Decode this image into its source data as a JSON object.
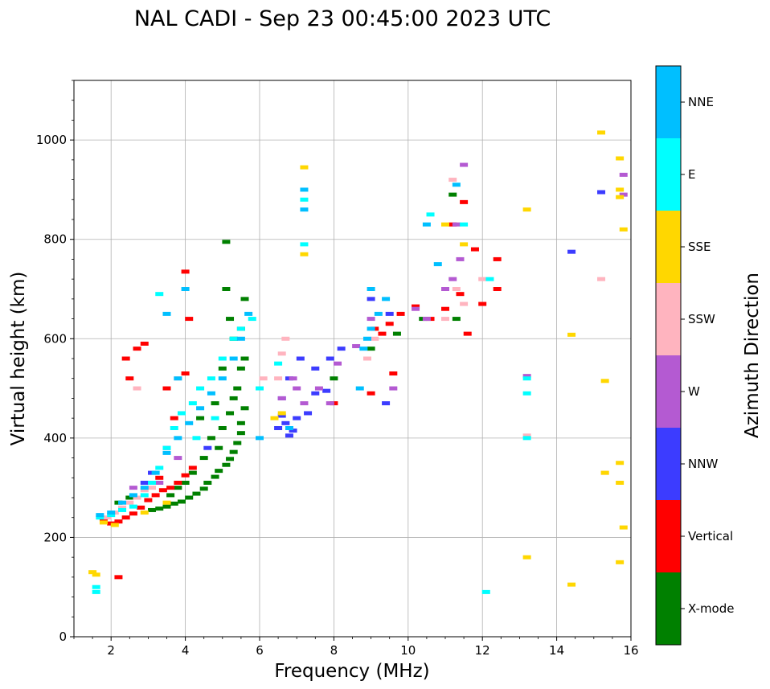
{
  "chart_data": {
    "type": "scatter",
    "title": "NAL CADI - Sep 23 00:45:00 2023 UTC",
    "xlabel": "Frequency (MHz)",
    "ylabel": "Virtual height (km)",
    "xlim": [
      1,
      16
    ],
    "ylim": [
      0,
      1120
    ],
    "xticks": [
      2,
      4,
      6,
      8,
      10,
      12,
      14,
      16
    ],
    "yticks": [
      0,
      200,
      400,
      600,
      800,
      1000
    ],
    "grid": true,
    "colorbar": {
      "label": "Azimuth Direction",
      "categories": [
        "X-mode",
        "Vertical",
        "NNW",
        "W",
        "SSW",
        "SSE",
        "E",
        "NNE"
      ],
      "colors": [
        "#008000",
        "#ff0000",
        "#3c3cff",
        "#b45ad2",
        "#ffb4bf",
        "#ffd700",
        "#00ffff",
        "#00bfff"
      ]
    },
    "series": [
      {
        "name": "X-mode",
        "points": [
          [
            3.1,
            255
          ],
          [
            3.3,
            258
          ],
          [
            3.5,
            262
          ],
          [
            3.7,
            268
          ],
          [
            3.9,
            272
          ],
          [
            4.1,
            280
          ],
          [
            4.3,
            288
          ],
          [
            4.5,
            298
          ],
          [
            4.6,
            310
          ],
          [
            4.8,
            322
          ],
          [
            4.9,
            334
          ],
          [
            5.1,
            346
          ],
          [
            5.2,
            358
          ],
          [
            5.3,
            372
          ],
          [
            5.4,
            390
          ],
          [
            5.5,
            410
          ],
          [
            5.5,
            430
          ],
          [
            5.6,
            460
          ],
          [
            4.9,
            380
          ],
          [
            5.0,
            420
          ],
          [
            5.2,
            450
          ],
          [
            5.3,
            480
          ],
          [
            5.4,
            500
          ],
          [
            5.5,
            540
          ],
          [
            5.6,
            560
          ],
          [
            5.3,
            600
          ],
          [
            5.2,
            640
          ],
          [
            5.6,
            680
          ],
          [
            5.1,
            700
          ],
          [
            5.1,
            795
          ],
          [
            4.5,
            360
          ],
          [
            4.2,
            330
          ],
          [
            4.0,
            310
          ],
          [
            3.8,
            300
          ],
          [
            3.6,
            285
          ],
          [
            4.7,
            400
          ],
          [
            5.0,
            540
          ],
          [
            4.4,
            440
          ],
          [
            8.0,
            520
          ],
          [
            9.0,
            580
          ],
          [
            9.7,
            610
          ],
          [
            10.4,
            640
          ],
          [
            11.3,
            640
          ],
          [
            11.2,
            890
          ],
          [
            2.2,
            270
          ],
          [
            2.5,
            280
          ],
          [
            5.5,
            620
          ],
          [
            4.8,
            470
          ]
        ]
      },
      {
        "name": "Vertical",
        "points": [
          [
            1.8,
            235
          ],
          [
            2.0,
            228
          ],
          [
            2.2,
            232
          ],
          [
            2.4,
            240
          ],
          [
            2.6,
            248
          ],
          [
            2.8,
            260
          ],
          [
            3.0,
            275
          ],
          [
            3.2,
            285
          ],
          [
            3.4,
            295
          ],
          [
            3.6,
            300
          ],
          [
            3.8,
            310
          ],
          [
            4.0,
            325
          ],
          [
            4.2,
            340
          ],
          [
            2.2,
            120
          ],
          [
            2.5,
            520
          ],
          [
            2.7,
            580
          ],
          [
            2.9,
            590
          ],
          [
            4.0,
            530
          ],
          [
            4.1,
            640
          ],
          [
            4.0,
            735
          ],
          [
            9.1,
            620
          ],
          [
            9.3,
            610
          ],
          [
            9.5,
            630
          ],
          [
            9.8,
            650
          ],
          [
            10.2,
            665
          ],
          [
            10.6,
            640
          ],
          [
            11.0,
            660
          ],
          [
            11.4,
            690
          ],
          [
            11.6,
            610
          ],
          [
            11.8,
            780
          ],
          [
            12.0,
            670
          ],
          [
            12.4,
            760
          ],
          [
            12.4,
            700
          ],
          [
            11.5,
            875
          ],
          [
            11.2,
            830
          ],
          [
            9.0,
            490
          ],
          [
            9.6,
            530
          ],
          [
            8.0,
            470
          ],
          [
            3.5,
            500
          ],
          [
            3.7,
            440
          ],
          [
            3.3,
            320
          ],
          [
            2.4,
            560
          ]
        ]
      },
      {
        "name": "NNW",
        "points": [
          [
            6.5,
            420
          ],
          [
            6.7,
            430
          ],
          [
            6.8,
            405
          ],
          [
            6.9,
            415
          ],
          [
            6.6,
            445
          ],
          [
            7.0,
            440
          ],
          [
            7.3,
            450
          ],
          [
            7.5,
            490
          ],
          [
            7.8,
            495
          ],
          [
            7.9,
            560
          ],
          [
            6.6,
            480
          ],
          [
            6.8,
            520
          ],
          [
            7.1,
            560
          ],
          [
            7.5,
            540
          ],
          [
            8.2,
            580
          ],
          [
            9.0,
            680
          ],
          [
            9.5,
            650
          ],
          [
            14.4,
            775
          ],
          [
            15.2,
            895
          ],
          [
            3.1,
            330
          ],
          [
            2.9,
            310
          ],
          [
            3.5,
            380
          ],
          [
            4.6,
            380
          ],
          [
            9.4,
            470
          ]
        ]
      },
      {
        "name": "W",
        "points": [
          [
            6.9,
            520
          ],
          [
            7.0,
            500
          ],
          [
            7.2,
            470
          ],
          [
            7.6,
            500
          ],
          [
            7.9,
            470
          ],
          [
            8.1,
            550
          ],
          [
            8.6,
            585
          ],
          [
            9.0,
            640
          ],
          [
            9.6,
            500
          ],
          [
            10.2,
            660
          ],
          [
            10.5,
            640
          ],
          [
            11.0,
            700
          ],
          [
            11.2,
            720
          ],
          [
            11.4,
            760
          ],
          [
            11.5,
            950
          ],
          [
            11.3,
            830
          ],
          [
            6.6,
            480
          ],
          [
            2.6,
            300
          ],
          [
            3.3,
            310
          ],
          [
            3.8,
            360
          ],
          [
            13.2,
            525
          ],
          [
            15.8,
            930
          ],
          [
            15.8,
            890
          ]
        ]
      },
      {
        "name": "SSW",
        "points": [
          [
            1.9,
            240
          ],
          [
            2.1,
            250
          ],
          [
            2.3,
            260
          ],
          [
            2.5,
            270
          ],
          [
            2.7,
            280
          ],
          [
            2.9,
            295
          ],
          [
            3.1,
            300
          ],
          [
            6.1,
            520
          ],
          [
            6.5,
            520
          ],
          [
            6.6,
            570
          ],
          [
            6.7,
            600
          ],
          [
            8.9,
            560
          ],
          [
            9.1,
            600
          ],
          [
            11.0,
            640
          ],
          [
            11.2,
            920
          ],
          [
            11.5,
            670
          ],
          [
            11.3,
            700
          ],
          [
            12.0,
            720
          ],
          [
            13.2,
            405
          ],
          [
            15.2,
            720
          ],
          [
            15.3,
            330
          ],
          [
            2.7,
            500
          ],
          [
            3.8,
            520
          ]
        ]
      },
      {
        "name": "SSE",
        "points": [
          [
            1.5,
            130
          ],
          [
            1.6,
            125
          ],
          [
            1.8,
            230
          ],
          [
            2.1,
            225
          ],
          [
            6.4,
            440
          ],
          [
            6.6,
            450
          ],
          [
            7.2,
            945
          ],
          [
            7.2,
            770
          ],
          [
            11.5,
            790
          ],
          [
            11.0,
            830
          ],
          [
            13.2,
            860
          ],
          [
            14.4,
            608
          ],
          [
            15.2,
            1015
          ],
          [
            15.7,
            963
          ],
          [
            15.7,
            900
          ],
          [
            15.7,
            885
          ],
          [
            15.8,
            820
          ],
          [
            15.3,
            515
          ],
          [
            15.7,
            350
          ],
          [
            15.7,
            310
          ],
          [
            15.8,
            220
          ],
          [
            15.7,
            150
          ],
          [
            13.2,
            160
          ],
          [
            14.4,
            105
          ],
          [
            15.3,
            330
          ],
          [
            3.5,
            270
          ],
          [
            2.9,
            250
          ]
        ]
      },
      {
        "name": "E",
        "points": [
          [
            1.6,
            90
          ],
          [
            1.6,
            100
          ],
          [
            1.7,
            240
          ],
          [
            2.0,
            245
          ],
          [
            2.3,
            255
          ],
          [
            2.6,
            262
          ],
          [
            2.9,
            285
          ],
          [
            3.1,
            310
          ],
          [
            3.3,
            340
          ],
          [
            3.5,
            380
          ],
          [
            3.7,
            420
          ],
          [
            3.9,
            450
          ],
          [
            4.2,
            470
          ],
          [
            4.4,
            500
          ],
          [
            4.7,
            520
          ],
          [
            5.0,
            560
          ],
          [
            5.3,
            600
          ],
          [
            5.5,
            620
          ],
          [
            5.8,
            640
          ],
          [
            6.0,
            500
          ],
          [
            6.5,
            550
          ],
          [
            7.2,
            880
          ],
          [
            7.2,
            790
          ],
          [
            10.6,
            850
          ],
          [
            11.5,
            830
          ],
          [
            12.1,
            90
          ],
          [
            12.2,
            720
          ],
          [
            13.2,
            520
          ],
          [
            13.2,
            490
          ],
          [
            13.2,
            400
          ],
          [
            4.8,
            440
          ],
          [
            4.3,
            400
          ],
          [
            3.3,
            690
          ]
        ]
      },
      {
        "name": "NNE",
        "points": [
          [
            1.7,
            245
          ],
          [
            2.0,
            250
          ],
          [
            2.3,
            270
          ],
          [
            2.6,
            285
          ],
          [
            2.9,
            300
          ],
          [
            3.2,
            330
          ],
          [
            3.5,
            370
          ],
          [
            3.8,
            400
          ],
          [
            4.1,
            430
          ],
          [
            4.4,
            460
          ],
          [
            4.7,
            490
          ],
          [
            5.0,
            520
          ],
          [
            5.3,
            560
          ],
          [
            5.5,
            600
          ],
          [
            5.7,
            650
          ],
          [
            6.0,
            400
          ],
          [
            6.8,
            420
          ],
          [
            7.2,
            900
          ],
          [
            7.2,
            860
          ],
          [
            8.8,
            580
          ],
          [
            8.9,
            600
          ],
          [
            9.0,
            620
          ],
          [
            9.2,
            650
          ],
          [
            9.0,
            700
          ],
          [
            9.4,
            680
          ],
          [
            10.5,
            830
          ],
          [
            10.8,
            750
          ],
          [
            11.3,
            910
          ],
          [
            8.7,
            500
          ],
          [
            3.8,
            520
          ],
          [
            4.0,
            700
          ],
          [
            3.5,
            650
          ]
        ]
      }
    ]
  }
}
